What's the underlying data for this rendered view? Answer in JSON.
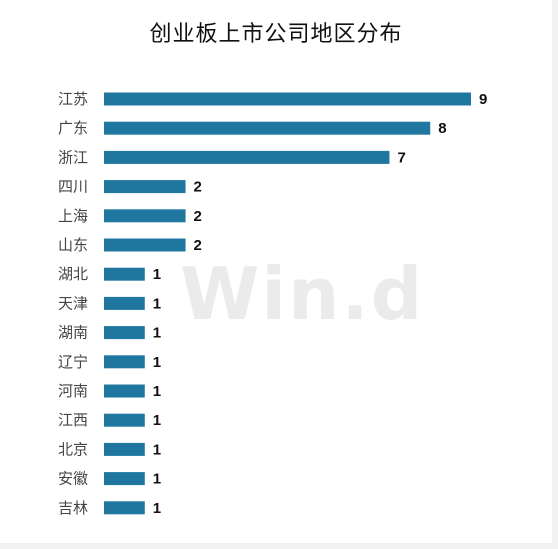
{
  "watermark": "Win.d",
  "colors": {
    "bar": "#1f77a0"
  },
  "chart_data": {
    "type": "bar",
    "orientation": "horizontal",
    "title": "创业板上市公司地区分布",
    "categories": [
      "江苏",
      "广东",
      "浙江",
      "四川",
      "上海",
      "山东",
      "湖北",
      "天津",
      "湖南",
      "辽宁",
      "河南",
      "江西",
      "北京",
      "安徽",
      "吉林"
    ],
    "values": [
      9,
      8,
      7,
      2,
      2,
      2,
      1,
      1,
      1,
      1,
      1,
      1,
      1,
      1,
      1
    ],
    "xlim": [
      0,
      9
    ],
    "grid": false,
    "legend": "none",
    "data_labels": true
  }
}
